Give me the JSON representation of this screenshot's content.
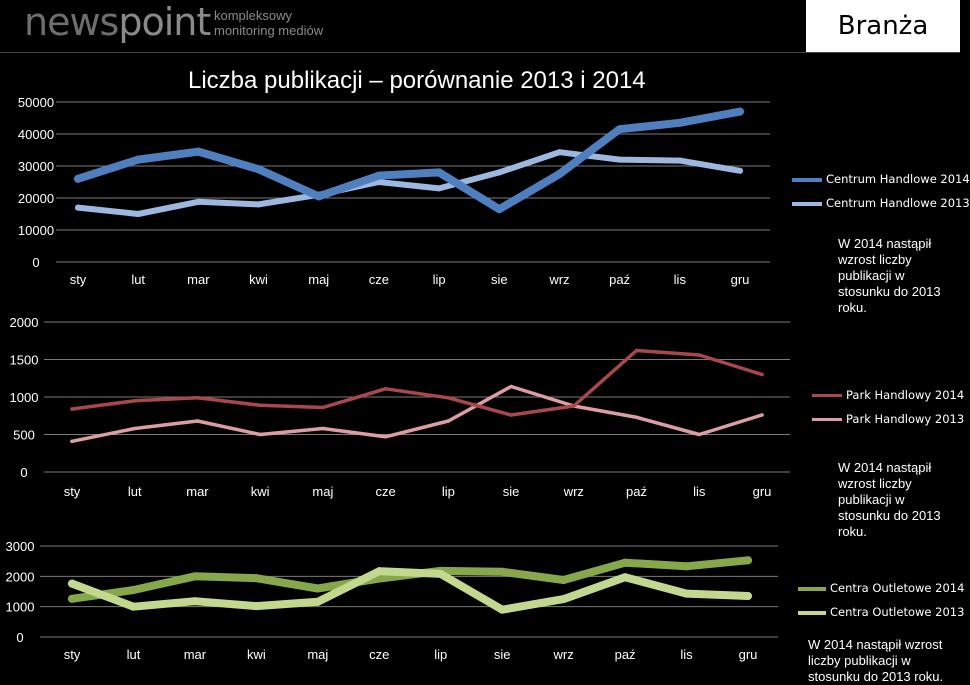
{
  "header": {
    "logo_main": "news",
    "logo_accent": "point",
    "logo_sub_line1": "kompleksowy",
    "logo_sub_line2": "monitoring mediów",
    "section": "Branża"
  },
  "main_title": "Liczba publikacji – porównanie 2013 i 2014",
  "colors": {
    "centrum_2014": "#4f7fbf",
    "centrum_2013": "#9cb8e0",
    "park_2014": "#a8484c",
    "park_2013": "#dc9ea2",
    "outlet_2014": "#86a84a",
    "outlet_2013": "#c2d88e"
  },
  "chart_data": [
    {
      "type": "line",
      "categories": [
        "sty",
        "lut",
        "mar",
        "kwi",
        "maj",
        "cze",
        "lip",
        "sie",
        "wrz",
        "paź",
        "lis",
        "gru"
      ],
      "yticks": [
        0,
        10000,
        20000,
        30000,
        40000,
        50000
      ],
      "ylim": [
        0,
        50000
      ],
      "series": [
        {
          "name": "Centrum Handlowe 2014",
          "values": [
            26000,
            32000,
            34500,
            29000,
            20500,
            27000,
            28000,
            16500,
            27500,
            41500,
            43500,
            47000
          ]
        },
        {
          "name": "Centrum Handlowe 2013",
          "values": [
            17000,
            15000,
            18800,
            18000,
            21000,
            25000,
            23000,
            28000,
            34300,
            32000,
            31700,
            28500
          ]
        }
      ],
      "legend": "right",
      "note": "W 2014 nastąpił wzrost liczby publikacji w stosunku do 2013 roku."
    },
    {
      "type": "line",
      "categories": [
        "sty",
        "lut",
        "mar",
        "kwi",
        "maj",
        "cze",
        "lip",
        "sie",
        "wrz",
        "paź",
        "lis",
        "gru"
      ],
      "yticks": [
        0,
        500,
        1000,
        1500,
        2000
      ],
      "ylim": [
        0,
        2000
      ],
      "series": [
        {
          "name": "Park Handlowy 2014",
          "values": [
            840,
            950,
            990,
            890,
            860,
            1110,
            990,
            760,
            880,
            1620,
            1560,
            1300
          ]
        },
        {
          "name": "Park Handlowy 2013",
          "values": [
            410,
            580,
            680,
            500,
            580,
            470,
            680,
            1140,
            880,
            730,
            500,
            760
          ]
        }
      ],
      "legend": "right",
      "note": "W 2014 nastąpił wzrost liczby publikacji w stosunku do 2013 roku."
    },
    {
      "type": "line",
      "categories": [
        "sty",
        "lut",
        "mar",
        "kwi",
        "maj",
        "cze",
        "lip",
        "sie",
        "wrz",
        "paź",
        "lis",
        "gru"
      ],
      "yticks": [
        0,
        1000,
        2000,
        3000
      ],
      "ylim": [
        0,
        3000
      ],
      "series": [
        {
          "name": "Centra Outletowe 2014",
          "values": [
            1260,
            1550,
            2000,
            1940,
            1600,
            1930,
            2180,
            2150,
            1880,
            2450,
            2330,
            2530
          ]
        },
        {
          "name": "Centra Outletowe 2013",
          "values": [
            1760,
            1000,
            1180,
            1020,
            1160,
            2170,
            2080,
            900,
            1250,
            1970,
            1430,
            1350
          ]
        }
      ],
      "legend": "right",
      "note": "W 2014 nastąpił wzrost liczby publikacji w stosunku do 2013 roku."
    }
  ]
}
